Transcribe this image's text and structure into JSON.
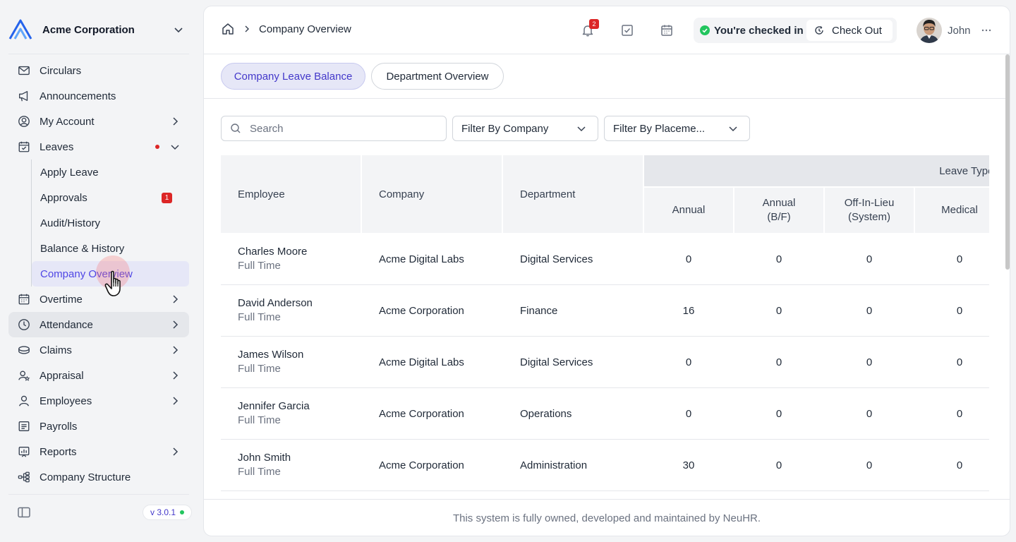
{
  "brand": {
    "name": "Acme Corporation"
  },
  "sidebar": {
    "items": [
      {
        "label": "Circulars",
        "icon": "mail-icon"
      },
      {
        "label": "Announcements",
        "icon": "megaphone-icon"
      },
      {
        "label": "My Account",
        "icon": "user-circle-icon",
        "has_children": true
      },
      {
        "label": "Leaves",
        "icon": "calendar-check-icon",
        "has_children": true,
        "expanded": true,
        "dot": true
      },
      {
        "label": "Overtime",
        "icon": "calendar-icon",
        "has_children": true
      },
      {
        "label": "Attendance",
        "icon": "clock-icon",
        "has_children": true
      },
      {
        "label": "Claims",
        "icon": "coins-icon",
        "has_children": true
      },
      {
        "label": "Appraisal",
        "icon": "user-star-icon",
        "has_children": true
      },
      {
        "label": "Employees",
        "icon": "user-icon",
        "has_children": true
      },
      {
        "label": "Payrolls",
        "icon": "receipt-icon"
      },
      {
        "label": "Reports",
        "icon": "chart-icon",
        "has_children": true
      },
      {
        "label": "Company Structure",
        "icon": "hierarchy-icon"
      }
    ],
    "leaves_sub": [
      {
        "label": "Apply Leave"
      },
      {
        "label": "Approvals",
        "badge": "1"
      },
      {
        "label": "Audit/History"
      },
      {
        "label": "Balance & History"
      },
      {
        "label": "Company Overview",
        "active": true
      }
    ],
    "version": "v 3.0.1"
  },
  "header": {
    "breadcrumb": "Company Overview",
    "notification_count": "2",
    "checkin_status": "You're checked in",
    "checkout_label": "Check Out",
    "user_name": "John"
  },
  "tabs": [
    {
      "label": "Company Leave Balance",
      "active": true
    },
    {
      "label": "Department Overview",
      "active": false
    }
  ],
  "filters": {
    "search_placeholder": "Search",
    "company_label": "Filter By Company",
    "placement_label": "Filter By Placeme..."
  },
  "table": {
    "columns": {
      "employee": "Employee",
      "company": "Company",
      "department": "Department",
      "group": "Leave Types",
      "annual": "Annual",
      "annual_bf_1": "Annual",
      "annual_bf_2": "(B/F)",
      "offinlieu_1": "Off-In-Lieu",
      "offinlieu_2": "(System)",
      "medical": "Medical"
    },
    "rows": [
      {
        "name": "Charles Moore",
        "type": "Full Time",
        "company": "Acme Digital Labs",
        "department": "Digital Services",
        "annual": "0",
        "annual_bf": "0",
        "offinlieu": "0",
        "medical": "0"
      },
      {
        "name": "David Anderson",
        "type": "Full Time",
        "company": "Acme Corporation",
        "department": "Finance",
        "annual": "16",
        "annual_bf": "0",
        "offinlieu": "0",
        "medical": "0"
      },
      {
        "name": "James Wilson",
        "type": "Full Time",
        "company": "Acme Digital Labs",
        "department": "Digital Services",
        "annual": "0",
        "annual_bf": "0",
        "offinlieu": "0",
        "medical": "0"
      },
      {
        "name": "Jennifer Garcia",
        "type": "Full Time",
        "company": "Acme Corporation",
        "department": "Operations",
        "annual": "0",
        "annual_bf": "0",
        "offinlieu": "0",
        "medical": "0"
      },
      {
        "name": "John Smith",
        "type": "Full Time",
        "company": "Acme Corporation",
        "department": "Administration",
        "annual": "30",
        "annual_bf": "0",
        "offinlieu": "0",
        "medical": "0"
      }
    ]
  },
  "footer": {
    "text": "This system is fully owned, developed and maintained by NeuHR."
  },
  "colors": {
    "accent": "#4f46e5",
    "active_bg": "#e6e7f7",
    "badge": "#dc2626",
    "success": "#22c55e"
  }
}
